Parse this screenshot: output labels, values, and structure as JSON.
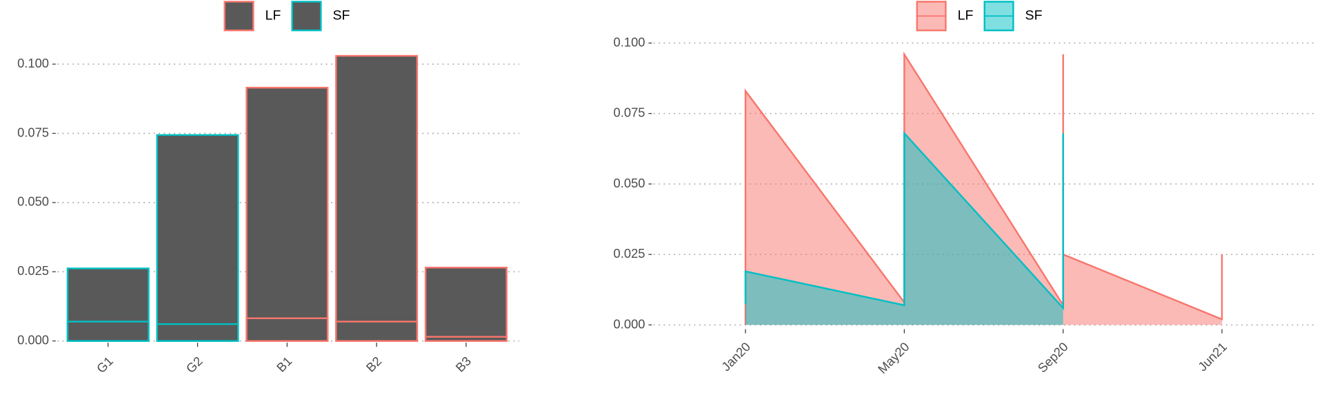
{
  "chart_data": [
    {
      "type": "bar",
      "categories": [
        "G1",
        "G2",
        "B1",
        "B2",
        "B3"
      ],
      "bar_fill": "#595959",
      "series": [
        {
          "name": "LF",
          "color": "#F8766D",
          "values": [
            null,
            null,
            0.0915,
            0.103,
            0.0265
          ],
          "lower_values": [
            null,
            null,
            0.0082,
            0.007,
            0.0015
          ]
        },
        {
          "name": "SF",
          "color": "#00BFC4",
          "values": [
            0.0262,
            0.0744,
            null,
            null,
            null
          ],
          "lower_values": [
            0.007,
            0.0061,
            null,
            null,
            null
          ]
        }
      ],
      "ylim": [
        0,
        0.105
      ],
      "yticks": [
        {
          "value": 0,
          "label": "0.000"
        },
        {
          "value": 0.025,
          "label": "0.025"
        },
        {
          "value": 0.05,
          "label": "0.050"
        },
        {
          "value": 0.075,
          "label": "0.075"
        },
        {
          "value": 0.1,
          "label": "0.100"
        }
      ],
      "grid": true
    },
    {
      "type": "area",
      "categories": [
        "Jan20",
        "May20",
        "Sep20",
        "Jun21"
      ],
      "xlim": [
        -0.6,
        3.6
      ],
      "series": [
        {
          "name": "LF",
          "color": "#F8766D",
          "x": [
            "Jan20",
            "Jan20",
            "May20",
            "May20",
            "Sep20",
            "Sep20",
            "Sep20",
            "Jun21",
            "Jun21"
          ],
          "values": [
            0.0,
            0.083,
            0.008,
            0.096,
            0.007,
            0.096,
            0.025,
            0.002,
            0.025
          ]
        },
        {
          "name": "SF",
          "color": "#00BFC4",
          "x": [
            "Jan20",
            "Jan20",
            "May20",
            "May20",
            "Sep20",
            "Sep20",
            "Sep20"
          ],
          "values": [
            0.0075,
            0.019,
            0.007,
            0.068,
            0.006,
            0.068,
            0.006
          ]
        }
      ],
      "ylim": [
        0,
        0.105
      ],
      "yticks": [
        {
          "value": 0,
          "label": "0.000"
        },
        {
          "value": 0.025,
          "label": "0.025"
        },
        {
          "value": 0.05,
          "label": "0.050"
        },
        {
          "value": 0.075,
          "label": "0.075"
        },
        {
          "value": 0.1,
          "label": "0.100"
        }
      ],
      "grid": true
    }
  ]
}
